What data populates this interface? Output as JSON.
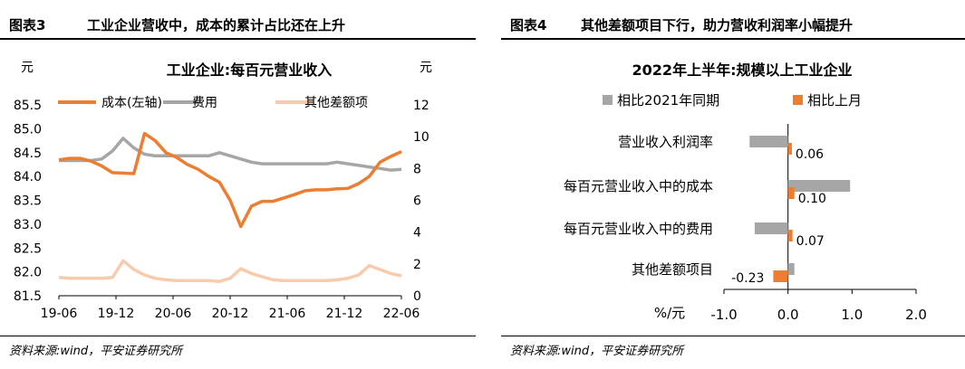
{
  "left": {
    "figure_label": "图表3",
    "title": "工业企业营收中，成本的累计占比还在上升",
    "source": "资料来源:wind，平安证券研究所",
    "chart_data": {
      "type": "line",
      "title": "工业企业:每百元营业收入",
      "y_left_unit": "元",
      "y_right_unit": "元",
      "y_left_range": [
        81.5,
        85.5
      ],
      "y_left_ticks": [
        "85.5",
        "85.0",
        "84.5",
        "84.0",
        "83.5",
        "83.0",
        "82.5",
        "82.0",
        "81.5"
      ],
      "y_right_range": [
        0,
        12
      ],
      "y_right_ticks": [
        "12",
        "10",
        "8",
        "6",
        "4",
        "2",
        "0"
      ],
      "x_ticks": [
        "19-06",
        "19-12",
        "20-06",
        "20-12",
        "21-06",
        "21-12",
        "22-06"
      ],
      "legend_position": "top",
      "series": [
        {
          "name": "成本(左轴)",
          "axis": "left",
          "color": "#ED7D31",
          "values": [
            84.35,
            84.38,
            84.38,
            84.32,
            84.22,
            84.08,
            84.07,
            84.06,
            84.9,
            84.75,
            84.5,
            84.4,
            84.25,
            84.15,
            84.0,
            83.88,
            83.5,
            82.95,
            83.38,
            83.48,
            83.48,
            83.55,
            83.62,
            83.7,
            83.72,
            83.72,
            83.74,
            83.75,
            83.85,
            84.0,
            84.3,
            84.42,
            84.52
          ]
        },
        {
          "name": "费用",
          "axis": "right",
          "color": "#A6A6A6",
          "values": [
            8.5,
            8.5,
            8.5,
            8.5,
            8.6,
            9.1,
            9.9,
            9.3,
            8.9,
            8.8,
            8.8,
            8.8,
            8.8,
            8.8,
            8.8,
            9.0,
            8.8,
            8.6,
            8.4,
            8.3,
            8.3,
            8.3,
            8.3,
            8.3,
            8.3,
            8.3,
            8.4,
            8.3,
            8.2,
            8.1,
            8.0,
            7.9,
            7.95
          ]
        },
        {
          "name": "其他差额项",
          "axis": "right",
          "color": "#F8CBAD",
          "values": [
            1.15,
            1.1,
            1.1,
            1.1,
            1.1,
            1.15,
            2.2,
            1.65,
            1.3,
            1.1,
            1.0,
            0.95,
            0.95,
            0.95,
            0.95,
            0.9,
            1.1,
            1.7,
            1.4,
            1.2,
            1.0,
            0.95,
            0.95,
            0.95,
            0.95,
            0.95,
            1.0,
            1.1,
            1.3,
            1.9,
            1.65,
            1.4,
            1.25
          ]
        }
      ]
    }
  },
  "right": {
    "figure_label": "图表4",
    "title": "其他差额项目下行，助力营收利润率小幅提升",
    "source": "资料来源:wind，平安证券研究所",
    "chart_data": {
      "type": "bar",
      "orientation": "horizontal",
      "title": "2022年上半年:规模以上工业企业",
      "xlabel": "%/元",
      "xlim": [
        -1.0,
        2.0
      ],
      "x_ticks": [
        "-1.0",
        "0.0",
        "1.0",
        "2.0"
      ],
      "legend_position": "top",
      "categories": [
        "营业收入利润率",
        "每百元营业收入中的成本",
        "每百元营业收入中的费用",
        "其他差额项目"
      ],
      "series": [
        {
          "name": "相比2021年同期",
          "color": "#A6A6A6",
          "values": [
            -0.6,
            0.97,
            -0.52,
            0.1
          ]
        },
        {
          "name": "相比上月",
          "color": "#ED7D31",
          "values": [
            0.06,
            0.1,
            0.07,
            -0.23
          ],
          "labels": [
            "0.06",
            "0.10",
            "0.07",
            "-0.23"
          ]
        }
      ]
    }
  }
}
